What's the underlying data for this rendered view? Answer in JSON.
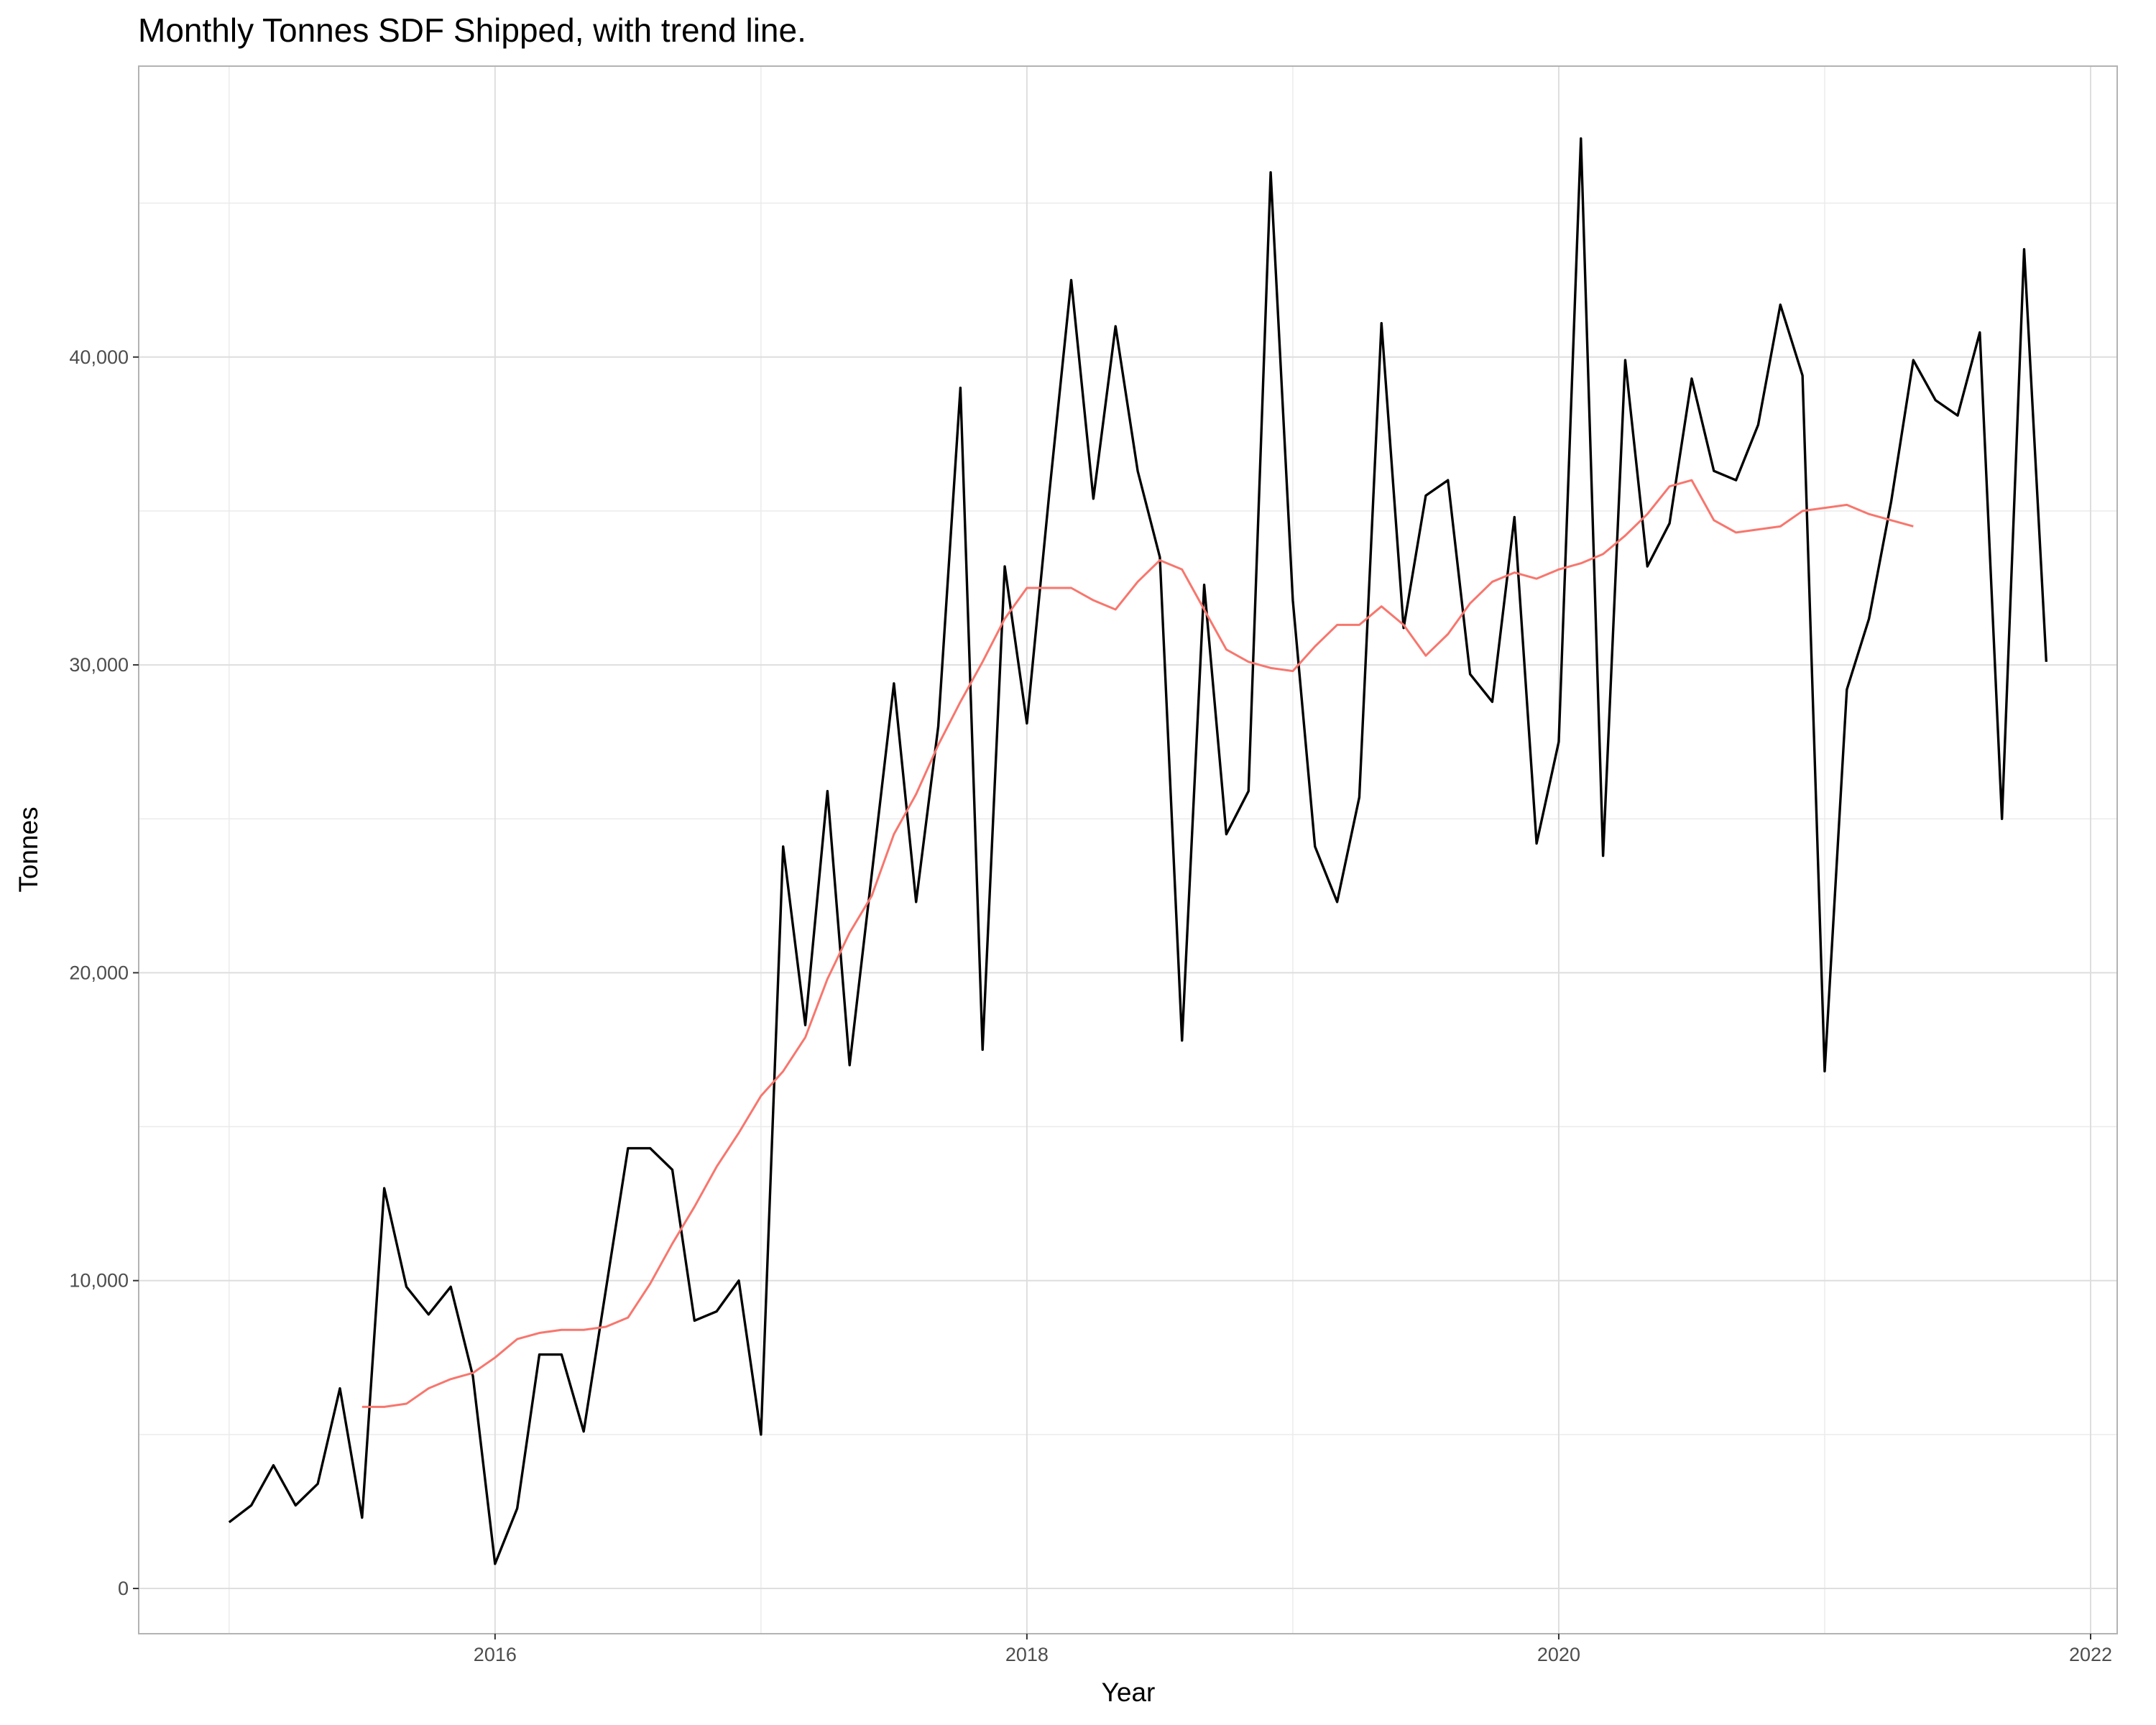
{
  "chart_data": {
    "type": "line",
    "title": "Monthly Tonnes SDF Shipped, with trend line.",
    "xlabel": "Year",
    "ylabel": "Tonnes",
    "xlim": [
      2014.66,
      2022.1
    ],
    "ylim": [
      -1470,
      49450
    ],
    "x_ticks": [
      "2016",
      "2018",
      "2020",
      "2022"
    ],
    "y_ticks": [
      "0",
      "10,000",
      "20,000",
      "30,000",
      "40,000"
    ],
    "grid": true,
    "legend": "none",
    "series": [
      {
        "color": "#000000",
        "start": "2015-01",
        "frequency": "monthly",
        "values": [
          2150,
          2700,
          4000,
          2700,
          3400,
          6500,
          2300,
          13000,
          9800,
          8900,
          9800,
          6900,
          800,
          2600,
          7600,
          7600,
          5100,
          9700,
          14300,
          14300,
          13600,
          8700,
          9000,
          10000,
          5000,
          24100,
          18300,
          25900,
          17000,
          23200,
          29400,
          22300,
          28000,
          39000,
          17500,
          33200,
          28100,
          35500,
          42500,
          35400,
          41000,
          36300,
          33500,
          17800,
          32600,
          24500,
          25900,
          46000,
          32100,
          24100,
          22300,
          25700,
          41100,
          31200,
          35500,
          36000,
          29700,
          28800,
          34800,
          24200,
          27500,
          47100,
          23800,
          39900,
          33200,
          34600,
          39300,
          36300,
          36000,
          37800,
          41700,
          39400,
          16800,
          29200,
          31500,
          35300,
          39900,
          38600,
          38100,
          40800,
          25000,
          43500,
          30100
        ]
      },
      {
        "color": "#F8766D",
        "start": "2015-07",
        "frequency": "monthly",
        "values": [
          5900,
          5900,
          6000,
          6500,
          6800,
          7000,
          7500,
          8100,
          8300,
          8400,
          8400,
          8500,
          8800,
          9900,
          11200,
          12400,
          13700,
          14800,
          16000,
          16800,
          17900,
          19800,
          21300,
          22500,
          24500,
          25800,
          27400,
          28800,
          30100,
          31500,
          32500,
          32500,
          32500,
          32100,
          31800,
          32700,
          33400,
          33100,
          31800,
          30500,
          30100,
          29900,
          29800,
          30600,
          31300,
          31300,
          31900,
          31300,
          30300,
          31000,
          32000,
          32700,
          33000,
          32800,
          33100,
          33300,
          33600,
          34200,
          34900,
          35800,
          36000,
          34700,
          34300,
          34400,
          34500,
          35000,
          35100,
          35200,
          34900,
          34700,
          34500
        ]
      }
    ]
  }
}
